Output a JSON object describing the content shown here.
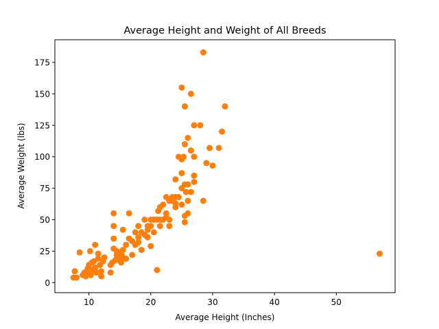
{
  "chart_data": {
    "type": "scatter",
    "title": "Average Height and Weight of All Breeds",
    "xlabel": "Average Height (Inches)",
    "ylabel": "Average Weight (lbs)",
    "xlim": [
      4.5,
      59.5
    ],
    "ylim": [
      -8,
      193
    ],
    "xticks": [
      10,
      20,
      30,
      40,
      50
    ],
    "yticks": [
      0,
      25,
      50,
      75,
      100,
      125,
      150,
      175
    ],
    "grid": false,
    "legend": "none",
    "colors": {
      "point": "#ff7f0e",
      "axis": "#000000",
      "background": "#ffffff"
    },
    "series": [
      {
        "points": [
          [
            7.5,
            4
          ],
          [
            7.7,
            9
          ],
          [
            8,
            4
          ],
          [
            8.5,
            24
          ],
          [
            9,
            6
          ],
          [
            9.3,
            8
          ],
          [
            9.5,
            5
          ],
          [
            9.8,
            11
          ],
          [
            10,
            14
          ],
          [
            10,
            8
          ],
          [
            10.2,
            25
          ],
          [
            10.3,
            6
          ],
          [
            10.5,
            10
          ],
          [
            10.5,
            16
          ],
          [
            10.8,
            17
          ],
          [
            11,
            30
          ],
          [
            11,
            12
          ],
          [
            11.2,
            8
          ],
          [
            11.5,
            19
          ],
          [
            11.5,
            23
          ],
          [
            11.8,
            14
          ],
          [
            12,
            9
          ],
          [
            12,
            5
          ],
          [
            12.3,
            17
          ],
          [
            12.5,
            20
          ],
          [
            13.5,
            8
          ],
          [
            13.5,
            14
          ],
          [
            13.8,
            16
          ],
          [
            14,
            55
          ],
          [
            14,
            45
          ],
          [
            14,
            35
          ],
          [
            14,
            27
          ],
          [
            14.3,
            18
          ],
          [
            14.5,
            22
          ],
          [
            14.5,
            25
          ],
          [
            14.8,
            20
          ],
          [
            15,
            18
          ],
          [
            15,
            24
          ],
          [
            15.2,
            16
          ],
          [
            15.3,
            22
          ],
          [
            15.5,
            26
          ],
          [
            15.5,
            20
          ],
          [
            15.5,
            42
          ],
          [
            16,
            19
          ],
          [
            16,
            30
          ],
          [
            16.5,
            55
          ],
          [
            16.5,
            35
          ],
          [
            17,
            33
          ],
          [
            17,
            22
          ],
          [
            17.5,
            30
          ],
          [
            17.5,
            40
          ],
          [
            18,
            36
          ],
          [
            18,
            45
          ],
          [
            18,
            32
          ],
          [
            18.5,
            40
          ],
          [
            18.5,
            26
          ],
          [
            19,
            50
          ],
          [
            19,
            38
          ],
          [
            19.5,
            42
          ],
          [
            19.5,
            36
          ],
          [
            19.5,
            45
          ],
          [
            20,
            50
          ],
          [
            20,
            45
          ],
          [
            20,
            29
          ],
          [
            20.5,
            50
          ],
          [
            20.5,
            40
          ],
          [
            21,
            10
          ],
          [
            21,
            50
          ],
          [
            21.2,
            57
          ],
          [
            21.5,
            60
          ],
          [
            21.5,
            50
          ],
          [
            21.5,
            45
          ],
          [
            22,
            62
          ],
          [
            22,
            50
          ],
          [
            22.5,
            68
          ],
          [
            22.5,
            55
          ],
          [
            22.5,
            52
          ],
          [
            23,
            65
          ],
          [
            23,
            50
          ],
          [
            23,
            45
          ],
          [
            23.5,
            68
          ],
          [
            23.5,
            65
          ],
          [
            24,
            82
          ],
          [
            24,
            68
          ],
          [
            24,
            63
          ],
          [
            24,
            60
          ],
          [
            24.5,
            100
          ],
          [
            24.5,
            68
          ],
          [
            25,
            155
          ],
          [
            25,
            98
          ],
          [
            25,
            87
          ],
          [
            25,
            75
          ],
          [
            25,
            62
          ],
          [
            25.3,
            100
          ],
          [
            25.5,
            140
          ],
          [
            25.5,
            110
          ],
          [
            25.5,
            78
          ],
          [
            25.5,
            53
          ],
          [
            25.5,
            48
          ],
          [
            25.7,
            72
          ],
          [
            26,
            115
          ],
          [
            26,
            78
          ],
          [
            26,
            65
          ],
          [
            26,
            55
          ],
          [
            26.5,
            150
          ],
          [
            26.5,
            105
          ],
          [
            26.5,
            72
          ],
          [
            27,
            125
          ],
          [
            27,
            100
          ],
          [
            27,
            85
          ],
          [
            27,
            80
          ],
          [
            28,
            125
          ],
          [
            28.5,
            183
          ],
          [
            28.5,
            65
          ],
          [
            29,
            95
          ],
          [
            29.5,
            107
          ],
          [
            30,
            93
          ],
          [
            31,
            107
          ],
          [
            31.5,
            120
          ],
          [
            32,
            140
          ],
          [
            57,
            23
          ]
        ]
      }
    ]
  }
}
